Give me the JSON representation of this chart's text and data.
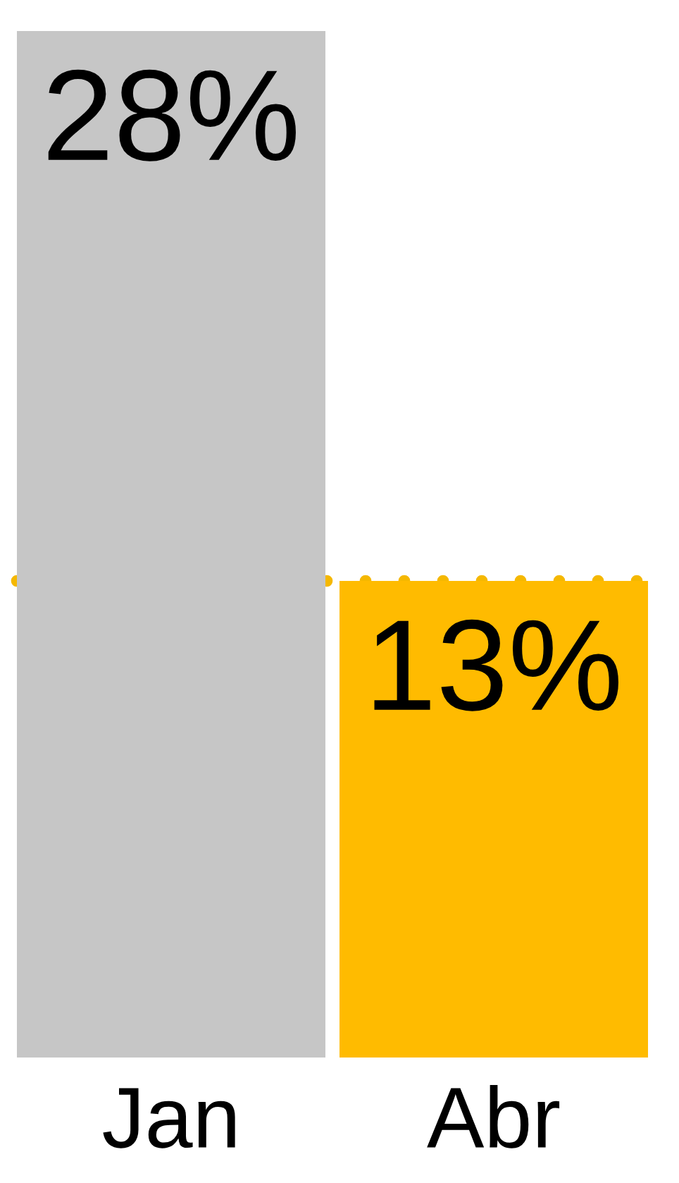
{
  "chart_data": {
    "type": "bar",
    "categories": [
      "Jan",
      "Abr"
    ],
    "values": [
      28,
      13
    ],
    "colors": [
      "#c6c6c6",
      "#ffbb00"
    ],
    "value_labels": [
      "28%",
      "13%"
    ],
    "ref_lines": [
      {
        "axis": "y",
        "value": 13,
        "color": "#f5b800",
        "line_style": "dotted"
      }
    ]
  }
}
